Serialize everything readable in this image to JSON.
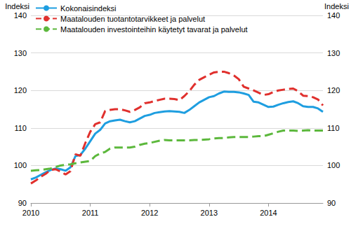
{
  "chart_data": {
    "type": "line",
    "y_label": "Indeksi",
    "y2_label": "Indeksi",
    "categories": [
      "2010",
      null,
      null,
      null,
      null,
      null,
      null,
      null,
      null,
      null,
      null,
      null,
      "2011",
      null,
      null,
      null,
      null,
      null,
      null,
      null,
      null,
      null,
      null,
      null,
      "2012",
      null,
      null,
      null,
      null,
      null,
      null,
      null,
      null,
      null,
      null,
      null,
      "2013",
      null,
      null,
      null,
      null,
      null,
      null,
      null,
      null,
      null,
      null,
      null,
      "2014",
      null,
      null,
      null,
      null,
      null,
      null,
      null,
      null,
      null,
      null,
      null
    ],
    "series": [
      {
        "name": "Kokonaisindeksi",
        "color": "#1e9ee0",
        "line_style": "solid",
        "values": [
          96.3,
          96.8,
          97.5,
          98.2,
          98.8,
          99.2,
          99.0,
          98.6,
          99.5,
          102.5,
          102.8,
          104.5,
          106.5,
          108.5,
          109.5,
          111.2,
          111.8,
          112.0,
          112.2,
          111.8,
          111.5,
          111.8,
          112.5,
          113.2,
          113.5,
          114.0,
          114.2,
          114.4,
          114.5,
          114.4,
          114.3,
          114.0,
          114.8,
          115.8,
          116.8,
          117.5,
          118.2,
          118.5,
          119.2,
          119.7,
          119.6,
          119.6,
          119.5,
          119.2,
          118.8,
          117.0,
          116.8,
          116.2,
          115.6,
          115.7,
          116.2,
          116.6,
          116.9,
          117.1,
          116.6,
          115.8,
          115.6,
          115.6,
          115.2,
          114.3
        ]
      },
      {
        "name": "Maatalouden tuotantotarvikkeet ja palvelut",
        "color": "#e0302d",
        "line_style": "dashed",
        "values": [
          95.2,
          96.0,
          97.0,
          97.8,
          98.8,
          99.0,
          98.4,
          97.6,
          98.5,
          103.0,
          102.6,
          106.0,
          109.0,
          111.0,
          111.5,
          114.5,
          114.8,
          115.0,
          115.0,
          114.7,
          114.3,
          114.8,
          115.5,
          116.6,
          116.8,
          117.2,
          117.5,
          117.8,
          117.8,
          117.7,
          117.4,
          118.5,
          119.8,
          121.5,
          122.8,
          123.5,
          124.2,
          124.8,
          125.0,
          125.0,
          124.6,
          124.0,
          123.0,
          121.0,
          120.5,
          120.0,
          119.4,
          118.8,
          119.0,
          119.6,
          120.0,
          120.2,
          120.4,
          120.5,
          119.8,
          118.6,
          118.5,
          118.2,
          117.6,
          116.0
        ]
      },
      {
        "name": "Maatalouden investointeihin käytetyt tavarat ja palvelut",
        "color": "#5cb83c",
        "line_style": "dashed",
        "values": [
          98.6,
          98.7,
          98.8,
          99.0,
          99.2,
          99.6,
          100.0,
          100.2,
          100.3,
          100.6,
          100.8,
          101.0,
          101.2,
          102.5,
          103.2,
          103.6,
          104.5,
          104.8,
          104.8,
          104.8,
          104.8,
          105.0,
          105.5,
          105.8,
          106.0,
          106.3,
          106.6,
          106.8,
          106.7,
          106.7,
          106.7,
          106.7,
          106.7,
          106.8,
          106.8,
          106.9,
          107.0,
          107.2,
          107.3,
          107.3,
          107.5,
          107.6,
          107.6,
          107.6,
          107.6,
          107.7,
          107.8,
          107.8,
          108.2,
          108.6,
          109.0,
          109.3,
          109.3,
          109.3,
          109.2,
          109.3,
          109.4,
          109.3,
          109.3,
          109.3
        ]
      }
    ],
    "ylim": [
      90,
      140
    ],
    "yticks": [
      90,
      100,
      110,
      120,
      130,
      140
    ],
    "y2lim": [
      90,
      140
    ],
    "y2ticks": [
      90,
      100,
      110,
      120,
      130,
      140
    ],
    "grid": true,
    "legend": "upper left"
  }
}
